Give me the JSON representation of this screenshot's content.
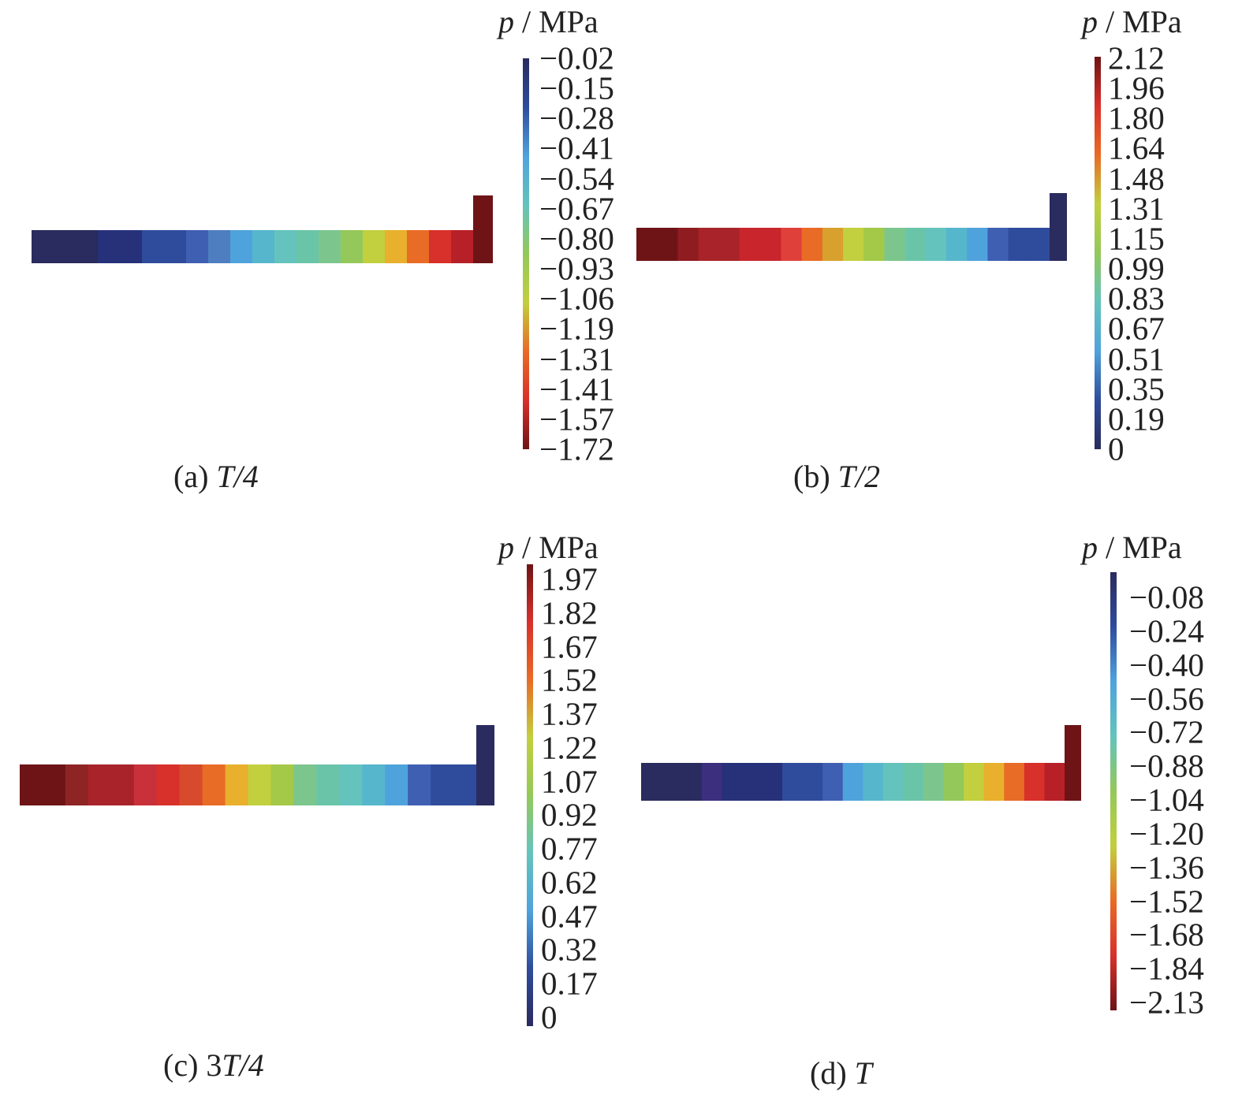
{
  "chart_data": [
    {
      "type": "heatmap",
      "caption_prefix": "(a) ",
      "caption_time": "T/4",
      "colorbar_label_symbol": "p",
      "colorbar_label_unit": " / MPa",
      "colorbar_ticks": [
        "−0.02",
        "−0.15",
        "−0.28",
        "−0.41",
        "−0.54",
        "−0.67",
        "−0.80",
        "−0.93",
        "−1.06",
        "−1.19",
        "−1.31",
        "−1.41",
        "−1.57",
        "−1.72"
      ],
      "value_range": [
        -1.72,
        -0.02
      ],
      "channel_colors": [
        "#2a2b5e",
        "#2a2b5e",
        "#2a2b5e",
        "#26317a",
        "#26317a",
        "#2f4c9c",
        "#2f4c9c",
        "#3f5fb2",
        "#4f7ec0",
        "#4fa3dc",
        "#56b6cc",
        "#64c3bc",
        "#6ac5a8",
        "#7cc68e",
        "#94c85a",
        "#c2cf3e",
        "#e8b02c",
        "#e86b26",
        "#d8302a",
        "#b82028"
      ],
      "riser_color": "#6e1416",
      "colorbar_colors": [
        "#2a2b5e",
        "#2f4c9c",
        "#4fa3dc",
        "#64c3bc",
        "#94c85a",
        "#c2cf3e",
        "#e86b26",
        "#d8302a",
        "#6e1416"
      ]
    },
    {
      "type": "heatmap",
      "caption_prefix": "(b) ",
      "caption_time": "T/2",
      "colorbar_label_symbol": "p",
      "colorbar_label_unit": " / MPa",
      "colorbar_ticks": [
        "2.12",
        "1.96",
        "1.80",
        "1.64",
        "1.48",
        "1.31",
        "1.15",
        "0.99",
        "0.83",
        "0.67",
        "0.51",
        "0.35",
        "0.19",
        "0"
      ],
      "value_range": [
        0,
        2.12
      ],
      "channel_colors": [
        "#6e1416",
        "#6e1416",
        "#8e1c20",
        "#a8242a",
        "#a8242a",
        "#c8262c",
        "#c8262c",
        "#e0403a",
        "#e86b26",
        "#d8a02c",
        "#c2cf3e",
        "#a4c848",
        "#7cc68e",
        "#6ac5a8",
        "#64c3bc",
        "#56b6cc",
        "#4fa3dc",
        "#3f5fb2",
        "#2f4c9c",
        "#2f4c9c"
      ],
      "riser_color": "#2a2b5e",
      "colorbar_colors": [
        "#6e1416",
        "#d8302a",
        "#e86b26",
        "#c2cf3e",
        "#94c85a",
        "#64c3bc",
        "#4fa3dc",
        "#2f4c9c",
        "#2a2b5e"
      ]
    },
    {
      "type": "heatmap",
      "caption_prefix": "(c) 3",
      "caption_time": "T/4",
      "colorbar_label_symbol": "p",
      "colorbar_label_unit": " / MPa",
      "colorbar_ticks": [
        "1.97",
        "1.82",
        "1.67",
        "1.52",
        "1.37",
        "1.22",
        "1.07",
        "0.92",
        "0.77",
        "0.62",
        "0.47",
        "0.32",
        "0.17",
        "0"
      ],
      "value_range": [
        0,
        1.97
      ],
      "channel_colors": [
        "#6e1416",
        "#6e1416",
        "#8e2424",
        "#a8242a",
        "#a8242a",
        "#c8303a",
        "#d8302a",
        "#d84a2c",
        "#e86b26",
        "#e8b02c",
        "#c2cf3e",
        "#a4c848",
        "#7cc68e",
        "#6ac5a8",
        "#64c3bc",
        "#56b6cc",
        "#4fa3dc",
        "#3f5fb2",
        "#2f4c9c",
        "#2f4c9c"
      ],
      "riser_color": "#2a2b5e",
      "colorbar_colors": [
        "#6e1416",
        "#d8302a",
        "#e86b26",
        "#c2cf3e",
        "#94c85a",
        "#64c3bc",
        "#4fa3dc",
        "#2f4c9c",
        "#2a2b5e"
      ]
    },
    {
      "type": "heatmap",
      "caption_prefix": "(d) ",
      "caption_time": "T",
      "colorbar_label_symbol": "p",
      "colorbar_label_unit": " / MPa",
      "colorbar_ticks": [
        "−0.08",
        "−0.24",
        "−0.40",
        "−0.56",
        "−0.72",
        "−0.88",
        "−1.04",
        "−1.20",
        "−1.36",
        "−1.52",
        "−1.68",
        "−1.84",
        "−2.13"
      ],
      "value_range": [
        -2.13,
        -0.08
      ],
      "channel_colors": [
        "#2a2b5e",
        "#2a2b5e",
        "#2a2b5e",
        "#3b2f7e",
        "#26317a",
        "#26317a",
        "#26317a",
        "#2f4c9c",
        "#2f4c9c",
        "#3f5fb2",
        "#4fa3dc",
        "#56b6cc",
        "#64c3bc",
        "#6ac5a8",
        "#7cc68e",
        "#94c85a",
        "#c2cf3e",
        "#e8b02c",
        "#e86b26",
        "#d8302a",
        "#b82028"
      ],
      "riser_color": "#6e1416",
      "colorbar_colors": [
        "#2a2b5e",
        "#2f4c9c",
        "#4fa3dc",
        "#64c3bc",
        "#94c85a",
        "#c2cf3e",
        "#e86b26",
        "#d8302a",
        "#6e1416"
      ]
    }
  ]
}
